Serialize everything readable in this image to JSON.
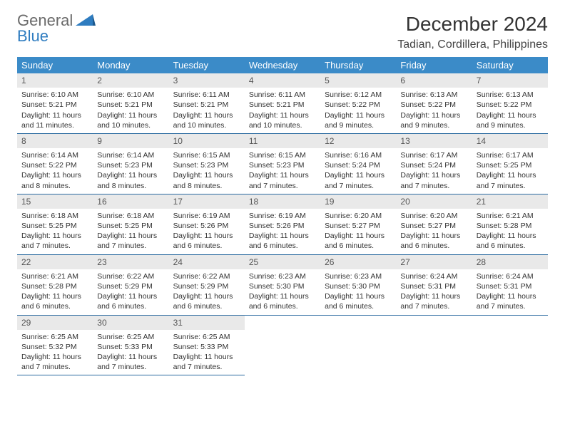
{
  "brand": {
    "word1": "General",
    "word2": "Blue"
  },
  "title": "December 2024",
  "location": "Tadian, Cordillera, Philippines",
  "colors": {
    "header_bg": "#3b8bc8",
    "header_text": "#ffffff",
    "daynum_bg": "#e9e9e9",
    "row_divider": "#2a6aa0",
    "logo_gray": "#6a6a6a",
    "logo_blue": "#2e7cc0"
  },
  "day_headers": [
    "Sunday",
    "Monday",
    "Tuesday",
    "Wednesday",
    "Thursday",
    "Friday",
    "Saturday"
  ],
  "weeks": [
    [
      {
        "n": "1",
        "sr": "6:10 AM",
        "ss": "5:21 PM",
        "dl": "11 hours and 11 minutes."
      },
      {
        "n": "2",
        "sr": "6:10 AM",
        "ss": "5:21 PM",
        "dl": "11 hours and 10 minutes."
      },
      {
        "n": "3",
        "sr": "6:11 AM",
        "ss": "5:21 PM",
        "dl": "11 hours and 10 minutes."
      },
      {
        "n": "4",
        "sr": "6:11 AM",
        "ss": "5:21 PM",
        "dl": "11 hours and 10 minutes."
      },
      {
        "n": "5",
        "sr": "6:12 AM",
        "ss": "5:22 PM",
        "dl": "11 hours and 9 minutes."
      },
      {
        "n": "6",
        "sr": "6:13 AM",
        "ss": "5:22 PM",
        "dl": "11 hours and 9 minutes."
      },
      {
        "n": "7",
        "sr": "6:13 AM",
        "ss": "5:22 PM",
        "dl": "11 hours and 9 minutes."
      }
    ],
    [
      {
        "n": "8",
        "sr": "6:14 AM",
        "ss": "5:22 PM",
        "dl": "11 hours and 8 minutes."
      },
      {
        "n": "9",
        "sr": "6:14 AM",
        "ss": "5:23 PM",
        "dl": "11 hours and 8 minutes."
      },
      {
        "n": "10",
        "sr": "6:15 AM",
        "ss": "5:23 PM",
        "dl": "11 hours and 8 minutes."
      },
      {
        "n": "11",
        "sr": "6:15 AM",
        "ss": "5:23 PM",
        "dl": "11 hours and 7 minutes."
      },
      {
        "n": "12",
        "sr": "6:16 AM",
        "ss": "5:24 PM",
        "dl": "11 hours and 7 minutes."
      },
      {
        "n": "13",
        "sr": "6:17 AM",
        "ss": "5:24 PM",
        "dl": "11 hours and 7 minutes."
      },
      {
        "n": "14",
        "sr": "6:17 AM",
        "ss": "5:25 PM",
        "dl": "11 hours and 7 minutes."
      }
    ],
    [
      {
        "n": "15",
        "sr": "6:18 AM",
        "ss": "5:25 PM",
        "dl": "11 hours and 7 minutes."
      },
      {
        "n": "16",
        "sr": "6:18 AM",
        "ss": "5:25 PM",
        "dl": "11 hours and 7 minutes."
      },
      {
        "n": "17",
        "sr": "6:19 AM",
        "ss": "5:26 PM",
        "dl": "11 hours and 6 minutes."
      },
      {
        "n": "18",
        "sr": "6:19 AM",
        "ss": "5:26 PM",
        "dl": "11 hours and 6 minutes."
      },
      {
        "n": "19",
        "sr": "6:20 AM",
        "ss": "5:27 PM",
        "dl": "11 hours and 6 minutes."
      },
      {
        "n": "20",
        "sr": "6:20 AM",
        "ss": "5:27 PM",
        "dl": "11 hours and 6 minutes."
      },
      {
        "n": "21",
        "sr": "6:21 AM",
        "ss": "5:28 PM",
        "dl": "11 hours and 6 minutes."
      }
    ],
    [
      {
        "n": "22",
        "sr": "6:21 AM",
        "ss": "5:28 PM",
        "dl": "11 hours and 6 minutes."
      },
      {
        "n": "23",
        "sr": "6:22 AM",
        "ss": "5:29 PM",
        "dl": "11 hours and 6 minutes."
      },
      {
        "n": "24",
        "sr": "6:22 AM",
        "ss": "5:29 PM",
        "dl": "11 hours and 6 minutes."
      },
      {
        "n": "25",
        "sr": "6:23 AM",
        "ss": "5:30 PM",
        "dl": "11 hours and 6 minutes."
      },
      {
        "n": "26",
        "sr": "6:23 AM",
        "ss": "5:30 PM",
        "dl": "11 hours and 6 minutes."
      },
      {
        "n": "27",
        "sr": "6:24 AM",
        "ss": "5:31 PM",
        "dl": "11 hours and 7 minutes."
      },
      {
        "n": "28",
        "sr": "6:24 AM",
        "ss": "5:31 PM",
        "dl": "11 hours and 7 minutes."
      }
    ],
    [
      {
        "n": "29",
        "sr": "6:25 AM",
        "ss": "5:32 PM",
        "dl": "11 hours and 7 minutes."
      },
      {
        "n": "30",
        "sr": "6:25 AM",
        "ss": "5:33 PM",
        "dl": "11 hours and 7 minutes."
      },
      {
        "n": "31",
        "sr": "6:25 AM",
        "ss": "5:33 PM",
        "dl": "11 hours and 7 minutes."
      },
      null,
      null,
      null,
      null
    ]
  ],
  "labels": {
    "sunrise": "Sunrise:",
    "sunset": "Sunset:",
    "daylight": "Daylight:"
  }
}
